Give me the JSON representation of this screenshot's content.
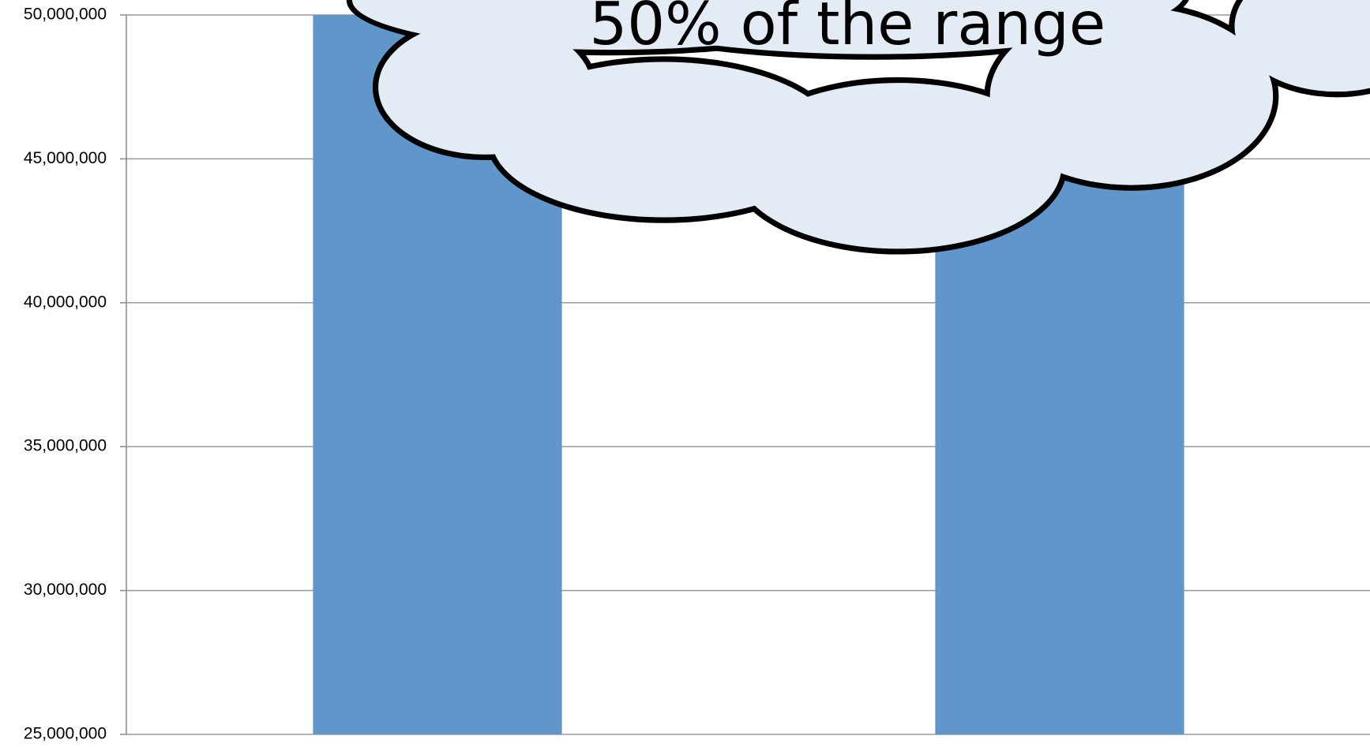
{
  "chart_data": {
    "type": "bar",
    "annotation": "50% of the range",
    "categories": [
      null,
      null
    ],
    "values": [
      50000000,
      46000000
    ],
    "color": "#6096c9",
    "ylim": [
      25000000,
      50000000
    ],
    "yticks": [
      {
        "value": 25000000,
        "label": "25,000,000"
      },
      {
        "value": 30000000,
        "label": "30,000,000"
      },
      {
        "value": 35000000,
        "label": "35,000,000"
      },
      {
        "value": 40000000,
        "label": "40,000,000"
      },
      {
        "value": 45000000,
        "label": "45,000,000"
      },
      {
        "value": 50000000,
        "label": "50,000,000"
      }
    ],
    "grid": true
  }
}
